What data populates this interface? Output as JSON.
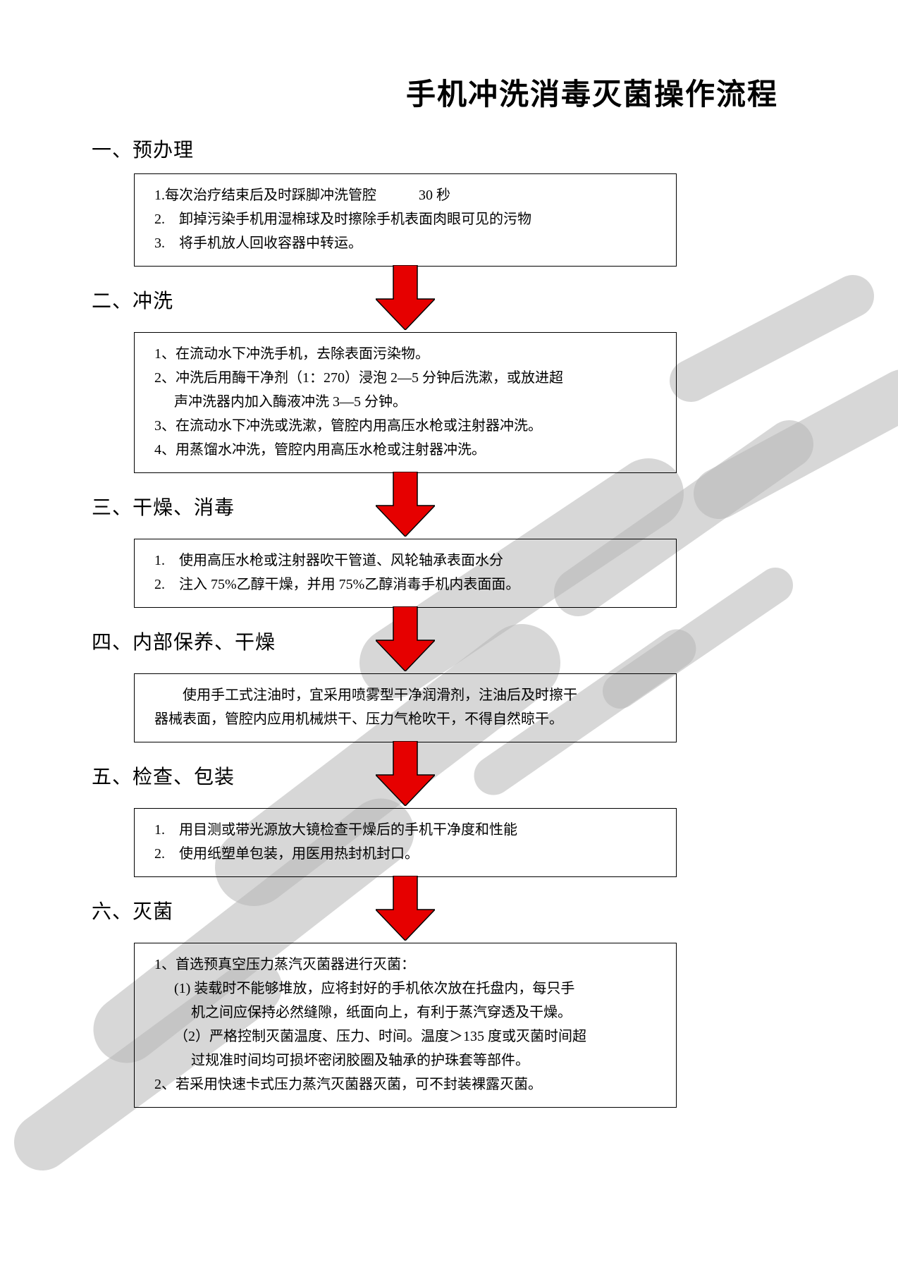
{
  "title": "手机冲洗消毒灭菌操作流程",
  "arrow": {
    "fill": "#e60000",
    "stroke": "#000000",
    "strokeWidth": 1.5,
    "stemWidth": 34,
    "headWidth": 84,
    "totalHeight": 92,
    "stemHeight": 48
  },
  "watermark": {
    "color": "#b8b8b8",
    "opacity": 0.55
  },
  "sections": [
    {
      "heading": "一、预办理",
      "items": [
        {
          "text": "1.每次治疗结束后及时踩脚冲洗管腔　　　30 秒",
          "cls": ""
        },
        {
          "text": "2.　卸掉污染手机用湿棉球及时擦除手机表面肉眼可见的污物",
          "cls": ""
        },
        {
          "text": "3.　将手机放人回收容器中转运。",
          "cls": ""
        }
      ]
    },
    {
      "heading": "二、冲洗",
      "items": [
        {
          "text": "1、在流动水下冲洗手机，去除表面污染物。",
          "cls": ""
        },
        {
          "text": "2、冲洗后用酶干净剂（1：270）浸泡 2—5 分钟后洗漱，或放进超",
          "cls": ""
        },
        {
          "text": "声冲洗器内加入酶液冲洗 3—5 分钟。",
          "cls": "indent"
        },
        {
          "text": "3、在流动水下冲洗或洗漱，管腔内用高压水枪或注射器冲洗。",
          "cls": ""
        },
        {
          "text": "4、用蒸馏水冲洗，管腔内用高压水枪或注射器冲洗。",
          "cls": ""
        }
      ]
    },
    {
      "heading": "三、干燥、消毒",
      "items": [
        {
          "text": "1.　使用高压水枪或注射器吹干管道、风轮轴承表面水分",
          "cls": ""
        },
        {
          "text": "2.　注入 75%乙醇干燥，并用 75%乙醇消毒手机内表面面。",
          "cls": ""
        }
      ]
    },
    {
      "heading": "四、内部保养、干燥",
      "items": [
        {
          "text": "　　使用手工式注油时，宜采用喷雾型干净润滑剂，注油后及时擦干",
          "cls": ""
        },
        {
          "text": "器械表面，管腔内应用机械烘干、压力气枪吹干，不得自然晾干。",
          "cls": ""
        }
      ]
    },
    {
      "heading": "五、检查、包装",
      "items": [
        {
          "text": "1.　用目测或带光源放大镜检查干燥后的手机干净度和性能",
          "cls": ""
        },
        {
          "text": "2.　使用纸塑单包装，用医用热封机封口。",
          "cls": ""
        }
      ]
    },
    {
      "heading": "六、灭菌",
      "items": [
        {
          "text": "1、首选预真空压力蒸汽灭菌器进行灭菌：",
          "cls": ""
        },
        {
          "text": "(1) 装载时不能够堆放，应将封好的手机依次放在托盘内，每只手",
          "cls": "indent"
        },
        {
          "text": "机之间应保持必然缝隙，纸面向上，有利于蒸汽穿透及干燥。",
          "cls": "indent2"
        },
        {
          "text": "（2）严格控制灭菌温度、压力、时间。温度＞135 度或灭菌时间超",
          "cls": "indent"
        },
        {
          "text": "过规准时间均可损坏密闭胶圈及轴承的护珠套等部件。",
          "cls": "indent2"
        },
        {
          "text": "2、若采用快速卡式压力蒸汽灭菌器灭菌，可不封装裸露灭菌。",
          "cls": ""
        }
      ]
    }
  ]
}
